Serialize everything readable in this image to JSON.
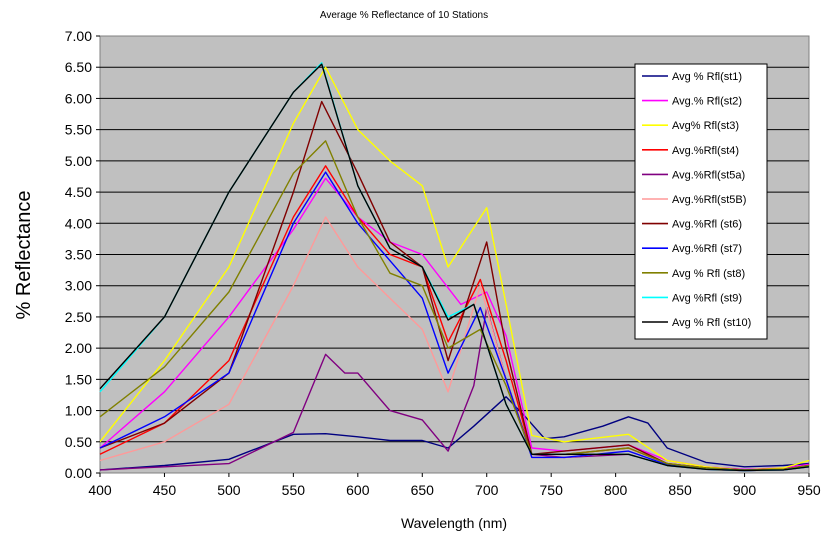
{
  "chart_data": {
    "type": "line",
    "title": "Average % Reflectance of 10 Stations",
    "xlabel": "Wavelength (nm)",
    "ylabel": "% Reflectance",
    "xlim": [
      400,
      950
    ],
    "ylim": [
      0,
      7
    ],
    "x_ticks": [
      "400",
      "450",
      "500",
      "550",
      "600",
      "650",
      "700",
      "750",
      "800",
      "850",
      "900",
      "950"
    ],
    "y_ticks": [
      "0.00",
      "0.50",
      "1.00",
      "1.50",
      "2.00",
      "2.50",
      "3.00",
      "3.50",
      "4.00",
      "4.50",
      "5.00",
      "5.50",
      "6.00",
      "6.50",
      "7.00"
    ],
    "grid": "horizontal",
    "legend_position": "right",
    "plot_background": "#c0c0c0",
    "series": [
      {
        "name": "Avg % Rfl(st1)",
        "color": "#000080",
        "points": [
          [
            400,
            0.05
          ],
          [
            450,
            0.12
          ],
          [
            500,
            0.22
          ],
          [
            550,
            0.62
          ],
          [
            575,
            0.63
          ],
          [
            600,
            0.58
          ],
          [
            625,
            0.52
          ],
          [
            650,
            0.52
          ],
          [
            670,
            0.4
          ],
          [
            690,
            0.75
          ],
          [
            715,
            1.22
          ],
          [
            730,
            0.9
          ],
          [
            745,
            0.55
          ],
          [
            760,
            0.58
          ],
          [
            790,
            0.75
          ],
          [
            810,
            0.9
          ],
          [
            825,
            0.8
          ],
          [
            840,
            0.4
          ],
          [
            870,
            0.17
          ],
          [
            900,
            0.1
          ],
          [
            930,
            0.12
          ],
          [
            950,
            0.15
          ]
        ]
      },
      {
        "name": "Avg.% Rfl(st2)",
        "color": "#ff00ff",
        "points": [
          [
            400,
            0.4
          ],
          [
            450,
            1.3
          ],
          [
            500,
            2.5
          ],
          [
            550,
            3.9
          ],
          [
            575,
            4.72
          ],
          [
            600,
            4.1
          ],
          [
            625,
            3.7
          ],
          [
            650,
            3.5
          ],
          [
            680,
            2.7
          ],
          [
            700,
            2.9
          ],
          [
            715,
            2.2
          ],
          [
            735,
            0.4
          ],
          [
            760,
            0.35
          ],
          [
            810,
            0.45
          ],
          [
            840,
            0.2
          ],
          [
            870,
            0.1
          ],
          [
            900,
            0.06
          ],
          [
            930,
            0.08
          ],
          [
            950,
            0.14
          ]
        ]
      },
      {
        "name": "Avg% Rfl(st3)",
        "color": "#ffff00",
        "points": [
          [
            400,
            0.5
          ],
          [
            450,
            1.8
          ],
          [
            500,
            3.3
          ],
          [
            550,
            5.6
          ],
          [
            575,
            6.5
          ],
          [
            600,
            5.5
          ],
          [
            625,
            5.0
          ],
          [
            650,
            4.6
          ],
          [
            670,
            3.3
          ],
          [
            700,
            4.25
          ],
          [
            715,
            2.7
          ],
          [
            735,
            0.6
          ],
          [
            760,
            0.5
          ],
          [
            810,
            0.62
          ],
          [
            840,
            0.2
          ],
          [
            870,
            0.1
          ],
          [
            900,
            0.05
          ],
          [
            930,
            0.08
          ],
          [
            950,
            0.2
          ]
        ]
      },
      {
        "name": "Avg.%Rfl(st4)",
        "color": "#ff0000",
        "points": [
          [
            400,
            0.3
          ],
          [
            450,
            0.8
          ],
          [
            500,
            1.8
          ],
          [
            550,
            4.1
          ],
          [
            575,
            4.92
          ],
          [
            600,
            4.1
          ],
          [
            625,
            3.5
          ],
          [
            650,
            3.3
          ],
          [
            670,
            2.1
          ],
          [
            695,
            3.1
          ],
          [
            715,
            1.8
          ],
          [
            735,
            0.3
          ],
          [
            760,
            0.3
          ],
          [
            810,
            0.4
          ],
          [
            840,
            0.15
          ],
          [
            870,
            0.08
          ],
          [
            900,
            0.05
          ],
          [
            930,
            0.06
          ],
          [
            950,
            0.12
          ]
        ]
      },
      {
        "name": "Avg.%Rfl(st5a)",
        "color": "#800080",
        "points": [
          [
            400,
            0.05
          ],
          [
            450,
            0.1
          ],
          [
            500,
            0.15
          ],
          [
            550,
            0.65
          ],
          [
            575,
            1.9
          ],
          [
            590,
            1.6
          ],
          [
            600,
            1.6
          ],
          [
            625,
            1.0
          ],
          [
            650,
            0.85
          ],
          [
            670,
            0.35
          ],
          [
            690,
            1.4
          ],
          [
            700,
            2.65
          ],
          [
            715,
            1.5
          ],
          [
            735,
            0.3
          ],
          [
            760,
            0.25
          ],
          [
            810,
            0.3
          ],
          [
            840,
            0.12
          ],
          [
            870,
            0.06
          ],
          [
            900,
            0.04
          ],
          [
            930,
            0.05
          ],
          [
            950,
            0.1
          ]
        ]
      },
      {
        "name": "Avg.%Rfl(st5B)",
        "color": "#ff9999",
        "points": [
          [
            400,
            0.2
          ],
          [
            450,
            0.5
          ],
          [
            500,
            1.1
          ],
          [
            550,
            3.0
          ],
          [
            575,
            4.1
          ],
          [
            600,
            3.3
          ],
          [
            625,
            2.8
          ],
          [
            650,
            2.3
          ],
          [
            670,
            1.3
          ],
          [
            695,
            3.0
          ],
          [
            715,
            1.5
          ],
          [
            735,
            0.25
          ],
          [
            760,
            0.25
          ],
          [
            810,
            0.35
          ],
          [
            840,
            0.13
          ],
          [
            870,
            0.06
          ],
          [
            900,
            0.04
          ],
          [
            930,
            0.05
          ],
          [
            950,
            0.1
          ]
        ]
      },
      {
        "name": "Avg.%Rfl (st6)",
        "color": "#800000",
        "points": [
          [
            400,
            0.4
          ],
          [
            450,
            0.8
          ],
          [
            500,
            1.6
          ],
          [
            550,
            4.5
          ],
          [
            572,
            5.95
          ],
          [
            600,
            4.8
          ],
          [
            625,
            3.7
          ],
          [
            650,
            3.3
          ],
          [
            670,
            1.8
          ],
          [
            700,
            3.7
          ],
          [
            715,
            2.0
          ],
          [
            735,
            0.3
          ],
          [
            760,
            0.35
          ],
          [
            810,
            0.45
          ],
          [
            840,
            0.15
          ],
          [
            870,
            0.08
          ],
          [
            900,
            0.05
          ],
          [
            930,
            0.06
          ],
          [
            950,
            0.12
          ]
        ]
      },
      {
        "name": "Avg.%Rfl (st7)",
        "color": "#0000ff",
        "points": [
          [
            400,
            0.4
          ],
          [
            450,
            0.9
          ],
          [
            500,
            1.6
          ],
          [
            550,
            4.0
          ],
          [
            575,
            4.82
          ],
          [
            600,
            4.0
          ],
          [
            625,
            3.4
          ],
          [
            650,
            2.8
          ],
          [
            670,
            1.6
          ],
          [
            695,
            2.65
          ],
          [
            715,
            1.5
          ],
          [
            735,
            0.25
          ],
          [
            760,
            0.25
          ],
          [
            810,
            0.35
          ],
          [
            840,
            0.13
          ],
          [
            870,
            0.06
          ],
          [
            900,
            0.04
          ],
          [
            930,
            0.05
          ],
          [
            950,
            0.1
          ]
        ]
      },
      {
        "name": "Avg % Rfl (st8)",
        "color": "#808000",
        "points": [
          [
            400,
            0.9
          ],
          [
            450,
            1.7
          ],
          [
            500,
            2.9
          ],
          [
            550,
            4.8
          ],
          [
            575,
            5.32
          ],
          [
            600,
            4.1
          ],
          [
            625,
            3.2
          ],
          [
            650,
            3.0
          ],
          [
            670,
            2.0
          ],
          [
            695,
            2.3
          ],
          [
            715,
            1.4
          ],
          [
            735,
            0.3
          ],
          [
            760,
            0.3
          ],
          [
            810,
            0.4
          ],
          [
            840,
            0.15
          ],
          [
            870,
            0.08
          ],
          [
            900,
            0.05
          ],
          [
            930,
            0.06
          ],
          [
            950,
            0.12
          ]
        ]
      },
      {
        "name": "Avg %Rfl (st9)",
        "color": "#00ffff",
        "points": [
          [
            400,
            1.3
          ],
          [
            450,
            2.5
          ],
          [
            500,
            4.5
          ],
          [
            550,
            6.1
          ],
          [
            572,
            6.57
          ],
          [
            600,
            4.6
          ],
          [
            625,
            3.6
          ],
          [
            650,
            3.3
          ],
          [
            670,
            2.5
          ],
          [
            690,
            2.7
          ],
          [
            715,
            1.1
          ],
          [
            735,
            0.3
          ],
          [
            760,
            0.3
          ],
          [
            810,
            0.3
          ],
          [
            840,
            0.12
          ],
          [
            870,
            0.06
          ],
          [
            900,
            0.04
          ],
          [
            930,
            0.05
          ],
          [
            950,
            0.1
          ]
        ]
      },
      {
        "name": "Avg % Rfl (st10)",
        "color": "#000000",
        "points": [
          [
            400,
            1.35
          ],
          [
            450,
            2.5
          ],
          [
            500,
            4.5
          ],
          [
            550,
            6.1
          ],
          [
            572,
            6.55
          ],
          [
            600,
            4.6
          ],
          [
            625,
            3.6
          ],
          [
            650,
            3.3
          ],
          [
            670,
            2.45
          ],
          [
            690,
            2.7
          ],
          [
            715,
            1.1
          ],
          [
            735,
            0.3
          ],
          [
            760,
            0.3
          ],
          [
            810,
            0.3
          ],
          [
            840,
            0.12
          ],
          [
            870,
            0.06
          ],
          [
            900,
            0.04
          ],
          [
            930,
            0.05
          ],
          [
            950,
            0.1
          ]
        ]
      }
    ]
  }
}
